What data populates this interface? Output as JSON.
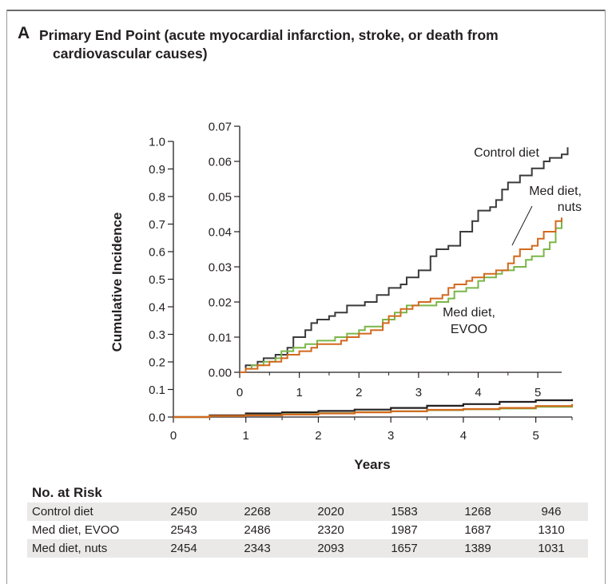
{
  "panel": {
    "letter": "A",
    "title_line1": "Primary End Point (acute myocardial infarction, stroke, or death from",
    "title_line2": "cardiovascular causes)"
  },
  "chart_data": [
    {
      "type": "line",
      "subtype": "step",
      "role": "main",
      "title": "Primary End Point (acute myocardial infarction, stroke, or death from cardiovascular causes)",
      "xlabel": "Years",
      "ylabel": "Cumulative Incidence",
      "xlim": [
        0,
        5.5
      ],
      "ylim": [
        0,
        1.0
      ],
      "x_ticks": [
        0,
        1,
        2,
        3,
        4,
        5
      ],
      "x_tick_labels": [
        "0",
        "1",
        "2",
        "3",
        "4",
        "5"
      ],
      "y_ticks": [
        0,
        0.1,
        0.2,
        0.3,
        0.4,
        0.5,
        0.6,
        0.7,
        0.8,
        0.9,
        1.0
      ],
      "y_tick_labels": [
        "0.0",
        "0.1",
        "0.2",
        "0.3",
        "0.4",
        "0.5",
        "0.6",
        "0.7",
        "0.8",
        "0.9",
        "1.0"
      ],
      "series": [
        {
          "name": "Control diet",
          "color": "#231f20",
          "points": [
            [
              0,
              0
            ],
            [
              0.5,
              0.006
            ],
            [
              1,
              0.013
            ],
            [
              1.5,
              0.017
            ],
            [
              2,
              0.022
            ],
            [
              2.5,
              0.027
            ],
            [
              3,
              0.033
            ],
            [
              3.5,
              0.041
            ],
            [
              4,
              0.047
            ],
            [
              4.5,
              0.055
            ],
            [
              5,
              0.061
            ],
            [
              5.5,
              0.065
            ]
          ]
        },
        {
          "name": "Med diet, EVOO",
          "color": "#7ab648",
          "points": [
            [
              0,
              0
            ],
            [
              0.5,
              0.004
            ],
            [
              1,
              0.007
            ],
            [
              1.5,
              0.01
            ],
            [
              2,
              0.014
            ],
            [
              2.5,
              0.018
            ],
            [
              3,
              0.021
            ],
            [
              3.5,
              0.025
            ],
            [
              4,
              0.028
            ],
            [
              4.5,
              0.031
            ],
            [
              5,
              0.037
            ],
            [
              5.5,
              0.046
            ]
          ]
        },
        {
          "name": "Med diet, nuts",
          "color": "#d2691e",
          "points": [
            [
              0,
              0
            ],
            [
              0.5,
              0.004
            ],
            [
              1,
              0.006
            ],
            [
              1.5,
              0.009
            ],
            [
              2,
              0.013
            ],
            [
              2.5,
              0.017
            ],
            [
              3,
              0.021
            ],
            [
              3.5,
              0.026
            ],
            [
              4,
              0.029
            ],
            [
              4.5,
              0.033
            ],
            [
              5,
              0.04
            ],
            [
              5.5,
              0.047
            ]
          ]
        }
      ]
    },
    {
      "type": "line",
      "subtype": "step",
      "role": "inset",
      "xlim": [
        0,
        5.4
      ],
      "ylim": [
        0,
        0.07
      ],
      "x_ticks": [
        0,
        1,
        2,
        3,
        4,
        5
      ],
      "x_tick_labels": [
        "0",
        "1",
        "2",
        "3",
        "4",
        "5"
      ],
      "y_ticks": [
        0,
        0.01,
        0.02,
        0.03,
        0.04,
        0.05,
        0.06,
        0.07
      ],
      "y_tick_labels": [
        "0.00",
        "0.01",
        "0.02",
        "0.03",
        "0.04",
        "0.05",
        "0.06",
        "0.07"
      ],
      "series": [
        {
          "name": "Control diet",
          "label": "Control diet",
          "color": "#3a3a3a",
          "points": [
            [
              0,
              0
            ],
            [
              0.1,
              0.002
            ],
            [
              0.3,
              0.003
            ],
            [
              0.4,
              0.004
            ],
            [
              0.6,
              0.005
            ],
            [
              0.8,
              0.007
            ],
            [
              0.9,
              0.01
            ],
            [
              1.1,
              0.012
            ],
            [
              1.2,
              0.014
            ],
            [
              1.3,
              0.015
            ],
            [
              1.5,
              0.016
            ],
            [
              1.6,
              0.017
            ],
            [
              1.8,
              0.019
            ],
            [
              2.0,
              0.019
            ],
            [
              2.1,
              0.02
            ],
            [
              2.3,
              0.022
            ],
            [
              2.5,
              0.024
            ],
            [
              2.7,
              0.025
            ],
            [
              2.8,
              0.027
            ],
            [
              3.0,
              0.029
            ],
            [
              3.2,
              0.033
            ],
            [
              3.3,
              0.035
            ],
            [
              3.5,
              0.036
            ],
            [
              3.7,
              0.04
            ],
            [
              3.9,
              0.043
            ],
            [
              4.0,
              0.046
            ],
            [
              4.2,
              0.047
            ],
            [
              4.3,
              0.049
            ],
            [
              4.4,
              0.052
            ],
            [
              4.5,
              0.054
            ],
            [
              4.7,
              0.056
            ],
            [
              4.9,
              0.058
            ],
            [
              5.1,
              0.06
            ],
            [
              5.2,
              0.061
            ],
            [
              5.4,
              0.062
            ],
            [
              5.5,
              0.064
            ]
          ]
        },
        {
          "name": "Med diet, EVOO",
          "label": "Med diet, EVOO",
          "color": "#7ab648",
          "points": [
            [
              0,
              0
            ],
            [
              0.1,
              0.001
            ],
            [
              0.2,
              0.002
            ],
            [
              0.4,
              0.003
            ],
            [
              0.6,
              0.004
            ],
            [
              0.7,
              0.006
            ],
            [
              0.9,
              0.007
            ],
            [
              1.1,
              0.008
            ],
            [
              1.3,
              0.009
            ],
            [
              1.5,
              0.009
            ],
            [
              1.6,
              0.01
            ],
            [
              1.8,
              0.011
            ],
            [
              2.0,
              0.012
            ],
            [
              2.1,
              0.013
            ],
            [
              2.3,
              0.013
            ],
            [
              2.4,
              0.015
            ],
            [
              2.6,
              0.017
            ],
            [
              2.8,
              0.019
            ],
            [
              3.0,
              0.019
            ],
            [
              3.1,
              0.019
            ],
            [
              3.3,
              0.02
            ],
            [
              3.5,
              0.021
            ],
            [
              3.6,
              0.023
            ],
            [
              3.8,
              0.024
            ],
            [
              4.0,
              0.026
            ],
            [
              4.1,
              0.027
            ],
            [
              4.3,
              0.028
            ],
            [
              4.4,
              0.029
            ],
            [
              4.6,
              0.03
            ],
            [
              4.8,
              0.032
            ],
            [
              4.9,
              0.033
            ],
            [
              5.1,
              0.035
            ],
            [
              5.2,
              0.037
            ],
            [
              5.3,
              0.041
            ],
            [
              5.4,
              0.044
            ]
          ]
        },
        {
          "name": "Med diet, nuts",
          "label": "Med diet, nuts",
          "color": "#d2691e",
          "points": [
            [
              0,
              0
            ],
            [
              0.1,
              0.001
            ],
            [
              0.3,
              0.002
            ],
            [
              0.5,
              0.003
            ],
            [
              0.7,
              0.004
            ],
            [
              0.8,
              0.005
            ],
            [
              1.0,
              0.006
            ],
            [
              1.2,
              0.007
            ],
            [
              1.3,
              0.008
            ],
            [
              1.5,
              0.008
            ],
            [
              1.7,
              0.009
            ],
            [
              1.8,
              0.01
            ],
            [
              2.0,
              0.011
            ],
            [
              2.1,
              0.011
            ],
            [
              2.2,
              0.012
            ],
            [
              2.4,
              0.014
            ],
            [
              2.5,
              0.016
            ],
            [
              2.7,
              0.018
            ],
            [
              2.9,
              0.019
            ],
            [
              3.0,
              0.02
            ],
            [
              3.2,
              0.021
            ],
            [
              3.4,
              0.022
            ],
            [
              3.5,
              0.024
            ],
            [
              3.6,
              0.025
            ],
            [
              3.8,
              0.026
            ],
            [
              3.9,
              0.027
            ],
            [
              4.1,
              0.028
            ],
            [
              4.3,
              0.029
            ],
            [
              4.5,
              0.031
            ],
            [
              4.6,
              0.033
            ],
            [
              4.7,
              0.035
            ],
            [
              4.9,
              0.036
            ],
            [
              5.0,
              0.038
            ],
            [
              5.1,
              0.04
            ],
            [
              5.3,
              0.043
            ],
            [
              5.4,
              0.044
            ]
          ]
        }
      ]
    }
  ],
  "inset_labels": {
    "control": "Control diet",
    "nuts_line1": "Med diet,",
    "nuts_line2": "nuts",
    "evoo_line1": "Med diet,",
    "evoo_line2": "EVOO"
  },
  "risk_table": {
    "heading": "No. at Risk",
    "rows": [
      {
        "label": "Control diet",
        "values": [
          "2450",
          "2268",
          "2020",
          "1583",
          "1268",
          "946"
        ]
      },
      {
        "label": "Med diet, EVOO",
        "values": [
          "2543",
          "2486",
          "2320",
          "1987",
          "1687",
          "1310"
        ]
      },
      {
        "label": "Med diet, nuts",
        "values": [
          "2454",
          "2343",
          "2093",
          "1657",
          "1389",
          "1031"
        ]
      }
    ]
  }
}
